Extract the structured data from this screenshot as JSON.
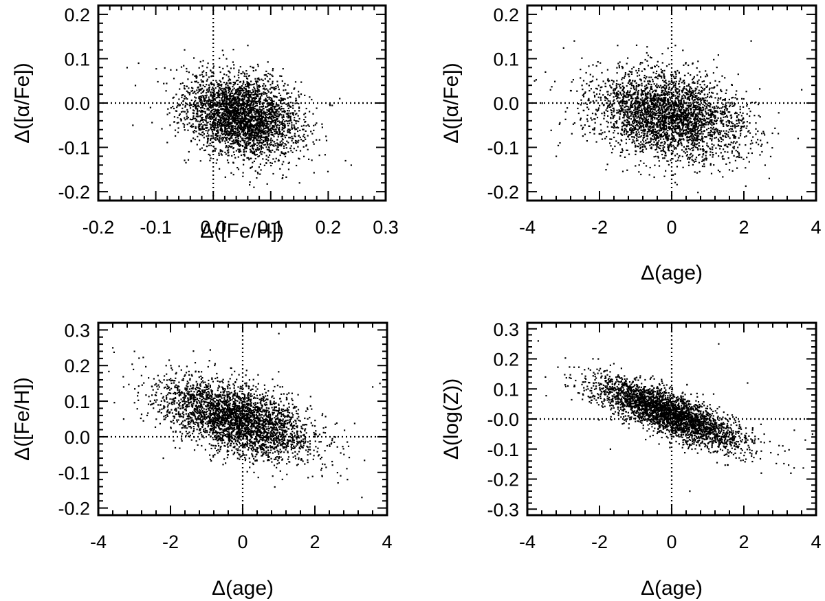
{
  "figure": {
    "background": "#ffffff",
    "ink": "#000000"
  },
  "chart_data": [
    {
      "id": "p1",
      "type": "scatter",
      "xlabel": "Δ([Fe/H])",
      "ylabel": "Δ([α/Fe])",
      "xlim": [
        -0.2,
        0.3
      ],
      "ylim": [
        -0.22,
        0.22
      ],
      "xticks": [
        -0.2,
        -0.1,
        0.0,
        0.1,
        0.2,
        0.3
      ],
      "xtick_labels": [
        "-0.2",
        "-0.1",
        "0.0",
        "0.1",
        "0.2",
        "0.3"
      ],
      "yticks": [
        -0.2,
        -0.1,
        0.0,
        0.1,
        0.2
      ],
      "ytick_labels": [
        "-0.2",
        "-0.1",
        "0.0",
        "0.1",
        "0.2"
      ],
      "reference_lines": {
        "x": 0,
        "y": 0,
        "style": "dotted"
      },
      "marker_color": "#000000",
      "cloud": {
        "n": 3200,
        "x_center": 0.05,
        "y_center": -0.03,
        "x_sd": 0.05,
        "y_sd": 0.045,
        "slope": -0.25
      },
      "points": [
        [
          -0.15,
          0.08
        ],
        [
          -0.13,
          0.09
        ],
        [
          -0.14,
          -0.05
        ],
        [
          0.23,
          -0.13
        ],
        [
          0.24,
          -0.14
        ],
        [
          0.22,
          0.01
        ],
        [
          0.06,
          0.13
        ],
        [
          0.15,
          -0.18
        ],
        [
          0.12,
          -0.17
        ],
        [
          -0.05,
          0.12
        ]
      ]
    },
    {
      "id": "p2",
      "type": "scatter",
      "xlabel": "Δ(age)",
      "ylabel": "Δ([α/Fe])",
      "xlim": [
        -4,
        4
      ],
      "ylim": [
        -0.22,
        0.22
      ],
      "xticks": [
        -4,
        -2,
        0,
        2,
        4
      ],
      "xtick_labels": [
        "-4",
        "-2",
        "0",
        "2",
        "4"
      ],
      "yticks": [
        -0.2,
        -0.1,
        0.0,
        0.1,
        0.2
      ],
      "ytick_labels": [
        "-0.2",
        "-0.1",
        "0.0",
        "0.1",
        "0.2"
      ],
      "reference_lines": {
        "x": 0,
        "y": 0,
        "style": "dotted"
      },
      "marker_color": "#000000",
      "cloud": {
        "n": 3200,
        "x_center": -0.1,
        "y_center": -0.03,
        "x_sd": 1.05,
        "y_sd": 0.048,
        "slope": -0.012
      },
      "points": [
        [
          -2.7,
          0.14
        ],
        [
          -3.5,
          0.07
        ],
        [
          -3.8,
          0.05
        ],
        [
          3.5,
          -0.08
        ],
        [
          3.6,
          0.03
        ],
        [
          2.7,
          -0.17
        ],
        [
          -1.5,
          0.13
        ],
        [
          0.1,
          0.13
        ],
        [
          2.2,
          0.14
        ],
        [
          -3.2,
          -0.12
        ]
      ]
    },
    {
      "id": "p3",
      "type": "scatter",
      "xlabel": "Δ(age)",
      "ylabel": "Δ([Fe/H])",
      "xlim": [
        -4,
        4
      ],
      "ylim": [
        -0.22,
        0.32
      ],
      "xticks": [
        -4,
        -2,
        0,
        2,
        4
      ],
      "xtick_labels": [
        "-4",
        "-2",
        "0",
        "2",
        "4"
      ],
      "yticks": [
        -0.2,
        -0.1,
        0.0,
        0.1,
        0.2,
        0.3
      ],
      "ytick_labels": [
        "-0.2",
        "-0.1",
        "0.0",
        "0.1",
        "0.2",
        "0.3"
      ],
      "reference_lines": {
        "x": 0,
        "y": 0,
        "style": "dotted"
      },
      "marker_color": "#000000",
      "cloud": {
        "n": 3200,
        "x_center": -0.15,
        "y_center": 0.05,
        "x_sd": 1.05,
        "y_sd": 0.048,
        "slope": -0.03
      },
      "points": [
        [
          -3.6,
          0.25
        ],
        [
          -3.3,
          0.14
        ],
        [
          -3.0,
          0.24
        ],
        [
          1.0,
          0.29
        ],
        [
          3.6,
          0.14
        ],
        [
          3.8,
          0.15
        ],
        [
          3.3,
          -0.17
        ],
        [
          2.9,
          -0.12
        ],
        [
          -3.3,
          0.05
        ],
        [
          -2.2,
          -0.06
        ]
      ]
    },
    {
      "id": "p4",
      "type": "scatter",
      "xlabel": "Δ(age)",
      "ylabel": "Δ(log(Z))",
      "xlim": [
        -4,
        4
      ],
      "ylim": [
        -0.32,
        0.32
      ],
      "xticks": [
        -4,
        -2,
        0,
        2,
        4
      ],
      "xtick_labels": [
        "-4",
        "-2",
        "0",
        "2",
        "4"
      ],
      "yticks": [
        -0.3,
        -0.2,
        -0.1,
        0.0,
        0.1,
        0.2,
        0.3
      ],
      "ytick_labels": [
        "-0.3",
        "-0.2",
        "-0.1",
        "-0.0",
        "0.1",
        "0.2",
        "0.3"
      ],
      "reference_lines": {
        "x": 0,
        "y": 0,
        "style": "dotted"
      },
      "marker_color": "#000000",
      "cloud": {
        "n": 3200,
        "x_center": -0.1,
        "y_center": 0.02,
        "x_sd": 1.05,
        "y_sd": 0.035,
        "slope": -0.045
      },
      "points": [
        [
          -3.7,
          0.26
        ],
        [
          -3.9,
          0.18
        ],
        [
          -3.5,
          0.14
        ],
        [
          3.7,
          -0.07
        ],
        [
          3.9,
          -0.05
        ],
        [
          3.3,
          -0.18
        ],
        [
          -1.7,
          -0.1
        ],
        [
          2.1,
          0.12
        ],
        [
          0.5,
          -0.24
        ],
        [
          1.3,
          0.25
        ]
      ]
    }
  ]
}
